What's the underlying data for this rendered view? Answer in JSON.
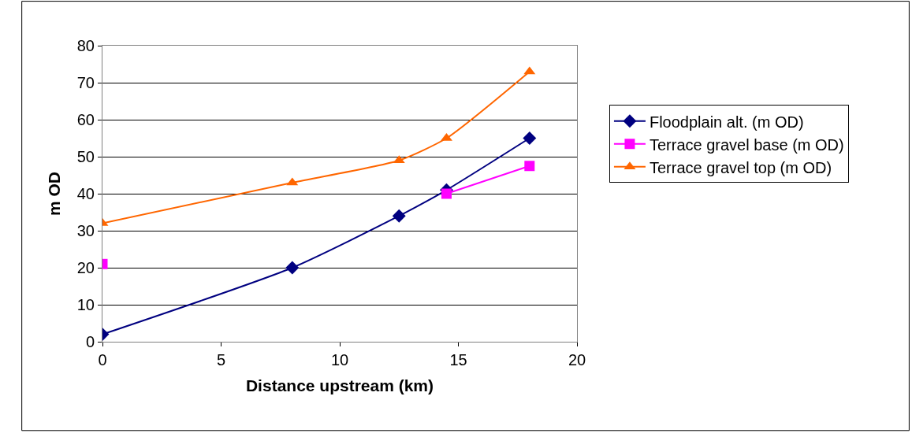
{
  "chart_data": {
    "type": "line",
    "xlabel": "Distance upstream (km)",
    "ylabel": "m OD",
    "x": [
      0,
      8,
      12.5,
      14.5,
      18
    ],
    "series": [
      {
        "name": "Floodplain alt. (m OD)",
        "color": "#000080",
        "marker": "diamond",
        "values": [
          2,
          20,
          34,
          41,
          55
        ]
      },
      {
        "name": "Terrace gravel base (m OD)",
        "color": "#ff00ff",
        "marker": "square",
        "values": [
          21,
          null,
          null,
          40,
          47.5
        ]
      },
      {
        "name": "Terrace gravel top (m OD)",
        "color": "#ff6600",
        "marker": "triangle",
        "values": [
          32,
          43,
          49,
          55,
          73
        ]
      }
    ],
    "xlim": [
      0,
      20
    ],
    "xticks": [
      0,
      5,
      10,
      15,
      20
    ],
    "ylim": [
      0,
      80
    ],
    "yticks": [
      0,
      10,
      20,
      30,
      40,
      50,
      60,
      70,
      80
    ],
    "grid": "y",
    "legend": "right"
  }
}
